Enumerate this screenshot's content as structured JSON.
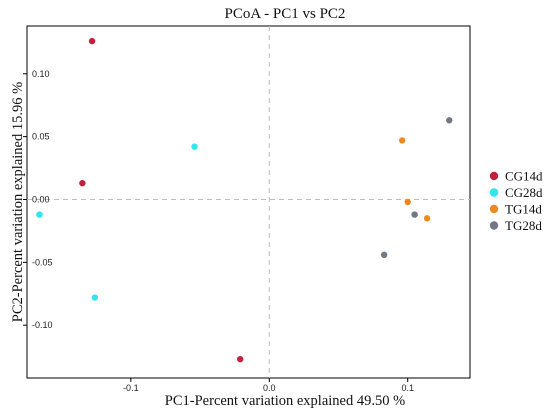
{
  "chart_data": {
    "type": "scatter",
    "title": "PCoA - PC1 vs PC2",
    "xlabel": "PC1-Percent variation explained 49.50 %",
    "ylabel": "PC2-Percent variation explained 15.96 %",
    "xlim": [
      -0.175,
      0.145
    ],
    "ylim": [
      -0.142,
      0.138
    ],
    "xticks": [
      -0.1,
      0.0,
      0.1
    ],
    "xtick_labels": [
      "-0.1",
      "0.0",
      "0.1"
    ],
    "yticks": [
      0.1,
      0.05,
      0.0,
      -0.05,
      -0.1
    ],
    "ytick_labels": [
      "0.10",
      "0.05",
      "0.00",
      "-0.05",
      "-0.10"
    ],
    "grid": false,
    "reference_lines": {
      "x": 0,
      "y": 0,
      "style": "dashed"
    },
    "legend_position": "right",
    "series": [
      {
        "name": "CG14d",
        "color": "#c0223e",
        "points": [
          [
            -0.128,
            0.126
          ],
          [
            -0.135,
            0.013
          ],
          [
            -0.021,
            -0.127
          ]
        ]
      },
      {
        "name": "CG28d",
        "color": "#2ee6ec",
        "points": [
          [
            -0.054,
            0.042
          ],
          [
            -0.166,
            -0.012
          ],
          [
            -0.126,
            -0.078
          ]
        ]
      },
      {
        "name": "TG14d",
        "color": "#ec8a1f",
        "points": [
          [
            0.096,
            0.047
          ],
          [
            0.1,
            -0.002
          ],
          [
            0.114,
            -0.015
          ]
        ]
      },
      {
        "name": "TG28d",
        "color": "#6f7883",
        "points": [
          [
            0.13,
            0.063
          ],
          [
            0.105,
            -0.012
          ],
          [
            0.083,
            -0.044
          ]
        ]
      }
    ]
  }
}
